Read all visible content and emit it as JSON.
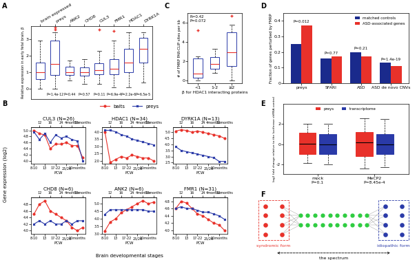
{
  "chart_data": [
    {
      "panel": "A",
      "type": "box",
      "y_label": "Relative expression in early fetal brain, β",
      "categories": [
        "brain expressed",
        "preys",
        "ANK2",
        "CHD8",
        "CUL3",
        "FMR1",
        "HDAC1",
        "DYRK1A"
      ],
      "p_values": [
        null,
        "P=1.4e-12",
        "P=0.44",
        "P=0.57",
        "P=0.11",
        "P=6.9e-4",
        "P=2.2e-6",
        "P=6.5e-5"
      ],
      "boxes": [
        {
          "whisker_low": 0,
          "q1": 0.6,
          "median": 1.0,
          "q3": 1.6,
          "whisker_high": 2.9,
          "outliers": []
        },
        {
          "whisker_low": 0,
          "q1": 0.85,
          "median": 1.5,
          "q3": 2.9,
          "whisker_high": 3.4,
          "outliers": [
            3.6,
            3.7
          ]
        },
        {
          "whisker_low": 0.5,
          "q1": 0.85,
          "median": 1.0,
          "q3": 1.35,
          "whisker_high": 1.7,
          "outliers": []
        },
        {
          "whisker_low": 0.3,
          "q1": 0.8,
          "median": 1.0,
          "q3": 1.3,
          "whisker_high": 1.8,
          "outliers": []
        },
        {
          "whisker_low": 0.3,
          "q1": 0.9,
          "median": 1.15,
          "q3": 1.55,
          "whisker_high": 2.3,
          "outliers": [
            3.6
          ]
        },
        {
          "whisker_low": 0.1,
          "q1": 0.9,
          "median": 1.2,
          "q3": 1.8,
          "whisker_high": 2.9,
          "outliers": [
            3.5
          ]
        },
        {
          "whisker_low": 0.1,
          "q1": 1.0,
          "median": 1.6,
          "q3": 2.4,
          "whisker_high": 3.4,
          "outliers": []
        },
        {
          "whisker_low": 0.4,
          "q1": 1.6,
          "median": 2.4,
          "q3": 3.1,
          "whisker_high": 3.4,
          "outliers": []
        }
      ],
      "color": "#2a3aa8",
      "median_color": "#e8312a",
      "ylim": [
        -0.6,
        3.8
      ],
      "yticks": [
        0,
        1,
        2,
        3
      ]
    },
    {
      "panel": "B",
      "type": "line",
      "x_label": "Brain developmental stages",
      "y_label": "Gene expression (log2)",
      "legend": "upper center",
      "categories": [
        "8-10",
        "12",
        "13",
        "16",
        "17-22",
        "24",
        "25/26",
        "4months",
        "10months",
        "12months"
      ],
      "subplots": [
        {
          "title": "CUL3 (N=26)",
          "x_label": "PCW",
          "ylim": [
            3.9,
            5.1
          ],
          "yticks": [
            4.0,
            4.2,
            4.4,
            4.6,
            4.8,
            5.0
          ],
          "series": [
            {
              "name": "baits",
              "color": "#e8312a",
              "marker": "o",
              "values": [
                5.0,
                4.9,
                4.85,
                4.4,
                4.55,
                4.55,
                4.6,
                4.5,
                4.5,
                4.1
              ]
            },
            {
              "name": "preys",
              "color": "#2a3aa8",
              "marker": "x",
              "values": [
                4.95,
                4.7,
                4.9,
                4.6,
                4.85,
                4.75,
                4.8,
                4.7,
                4.65,
                4.0
              ]
            }
          ]
        },
        {
          "title": "HDAC1 (N=34)",
          "x_label": "PCW",
          "ylim": [
            1.8,
            4.3
          ],
          "yticks": [
            2.0,
            2.5,
            3.0,
            3.5,
            4.0
          ],
          "series": [
            {
              "name": "baits",
              "color": "#e8312a",
              "marker": "o",
              "values": [
                4.0,
                1.9,
                2.1,
                2.3,
                2.2,
                2.4,
                2.3,
                2.2,
                2.2,
                2.0
              ]
            },
            {
              "name": "preys",
              "color": "#2a3aa8",
              "marker": "x",
              "values": [
                4.1,
                4.1,
                4.0,
                3.8,
                3.7,
                3.5,
                3.4,
                3.3,
                3.2,
                3.1
              ]
            }
          ]
        },
        {
          "title": "DYRK1A (N=13)",
          "x_label": "PCW",
          "ylim": [
            2.4,
            5.4
          ],
          "yticks": [
            2.5,
            3.0,
            3.5,
            4.0,
            4.5,
            5.0
          ],
          "series": [
            {
              "name": "baits",
              "color": "#e8312a",
              "marker": "o",
              "values": [
                5.1,
                5.2,
                5.15,
                5.0,
                5.1,
                5.0,
                4.9,
                4.8,
                4.7,
                4.5
              ]
            },
            {
              "name": "preys",
              "color": "#2a3aa8",
              "marker": "x",
              "values": [
                3.8,
                3.5,
                3.4,
                3.3,
                3.2,
                3.1,
                3.0,
                2.9,
                2.6,
                2.6
              ]
            }
          ]
        },
        {
          "title": "CHD8 (N=6)",
          "x_label": "PCW",
          "ylim": [
            3.9,
            5.0
          ],
          "yticks": [
            4.0,
            4.2,
            4.4,
            4.6,
            4.8
          ],
          "series": [
            {
              "name": "baits",
              "color": "#e8312a",
              "marker": "o",
              "values": [
                4.5,
                4.8,
                4.9,
                4.6,
                4.5,
                4.4,
                4.3,
                4.1,
                4.0,
                4.1
              ]
            },
            {
              "name": "preys",
              "color": "#2a3aa8",
              "marker": "x",
              "values": [
                4.2,
                4.3,
                4.2,
                4.3,
                4.2,
                4.2,
                4.3,
                4.2,
                4.3,
                4.3
              ]
            }
          ]
        },
        {
          "title": "ANK2 (N=6)",
          "x_label": "PCW",
          "ylim": [
            3.0,
            5.4
          ],
          "yticks": [
            3.0,
            3.5,
            4.0,
            4.5,
            5.0
          ],
          "series": [
            {
              "name": "baits",
              "color": "#e8312a",
              "marker": "o",
              "values": [
                3.2,
                3.8,
                4.0,
                4.4,
                4.6,
                4.8,
                5.0,
                5.2,
                5.0,
                5.1
              ]
            },
            {
              "name": "preys",
              "color": "#2a3aa8",
              "marker": "x",
              "values": [
                4.3,
                4.6,
                4.6,
                4.6,
                4.6,
                4.6,
                4.6,
                4.6,
                4.5,
                4.5
              ]
            }
          ]
        },
        {
          "title": "FMR1 (N=31)",
          "x_label": "PCW",
          "ylim": [
            3.9,
            4.9
          ],
          "yticks": [
            4.0,
            4.2,
            4.4,
            4.6,
            4.8
          ],
          "series": [
            {
              "name": "baits",
              "color": "#e8312a",
              "marker": "o",
              "values": [
                4.6,
                4.8,
                4.75,
                4.6,
                4.45,
                4.4,
                4.3,
                4.2,
                4.15,
                4.0
              ]
            },
            {
              "name": "preys",
              "color": "#2a3aa8",
              "marker": "x",
              "values": [
                4.6,
                4.65,
                4.6,
                4.6,
                4.55,
                4.5,
                4.5,
                4.45,
                4.4,
                4.3
              ]
            }
          ]
        }
      ]
    },
    {
      "panel": "C",
      "type": "box",
      "x_label": "β for HDAC1 interacting proteins",
      "y_label": "# of FMRP PAR-CLIP sites per kb",
      "categories": [
        "<1",
        "1-2",
        "≥2"
      ],
      "annotations": [
        "R=0.42",
        "P=0.072"
      ],
      "boxes": [
        {
          "whisker_low": 0,
          "q1": 0.3,
          "median": 0.7,
          "q3": 2.3,
          "whisker_high": 2.5,
          "outliers": [
            5.2
          ]
        },
        {
          "whisker_low": 0.8,
          "q1": 1.2,
          "median": 1.7,
          "q3": 2.4,
          "whisker_high": 3.3,
          "outliers": []
        },
        {
          "whisker_low": 0,
          "q1": 1.5,
          "median": 2.9,
          "q3": 5.0,
          "whisker_high": 5.8,
          "outliers": [
            6.7
          ]
        }
      ],
      "color": "#2a3aa8",
      "median_color": "#e8312a",
      "ylim": [
        -0.3,
        7
      ],
      "yticks": [
        0,
        2,
        4,
        6
      ]
    },
    {
      "panel": "D",
      "type": "bar",
      "y_label": "Fraction of genes perturbed by FMRP",
      "categories": [
        "preys",
        "SFARI",
        "ASD",
        "ASD de novo CNVs"
      ],
      "p_values": [
        "P=0.012",
        "P=0.77",
        "P=0.21",
        "P=1.4e-19"
      ],
      "series": [
        {
          "name": "matched controls",
          "color": "#1a2a8c",
          "values": [
            0.25,
            0.16,
            0.2,
            0.13
          ]
        },
        {
          "name": "ASD-associated genes",
          "color": "#e8312a",
          "values": [
            0.37,
            0.17,
            0.17,
            0.11
          ]
        }
      ],
      "legend": "upper right",
      "ylim": [
        0,
        0.45
      ],
      "yticks": [
        0,
        0.1,
        0.2,
        0.3,
        0.4
      ]
    },
    {
      "panel": "E",
      "type": "box",
      "y_label": "log2 fold change relative to the luciferase shRNA control",
      "categories": [
        "mock",
        "MeCP2"
      ],
      "p_values": [
        "P=0.1",
        "P=8.45e-4"
      ],
      "series": [
        {
          "name": "preys",
          "color": "#e8312a",
          "boxes": [
            {
              "whisker_low": -1.9,
              "q1": -1.0,
              "median": 0.05,
              "q3": 1.1,
              "whisker_high": 2.0,
              "outliers": []
            },
            {
              "whisker_low": -2.4,
              "q1": -1.2,
              "median": 0.15,
              "q3": 1.2,
              "whisker_high": 2.6,
              "outliers": []
            }
          ]
        },
        {
          "name": "transcriptome",
          "color": "#2a3aa8",
          "boxes": [
            {
              "whisker_low": -2.0,
              "q1": -1.0,
              "median": 0.0,
              "q3": 1.0,
              "whisker_high": 2.0,
              "outliers": []
            },
            {
              "whisker_low": -2.3,
              "q1": -1.0,
              "median": 0.0,
              "q3": 1.0,
              "whisker_high": 2.5,
              "outliers": []
            }
          ]
        }
      ],
      "legend": "upper center",
      "ylim": [
        -3,
        4
      ],
      "yticks": [
        -2,
        0,
        2
      ]
    }
  ],
  "diagram": {
    "panel": "F",
    "left_label": "syndromic form",
    "right_label": "idiopathic form",
    "arrow_label": "the spectrum"
  }
}
